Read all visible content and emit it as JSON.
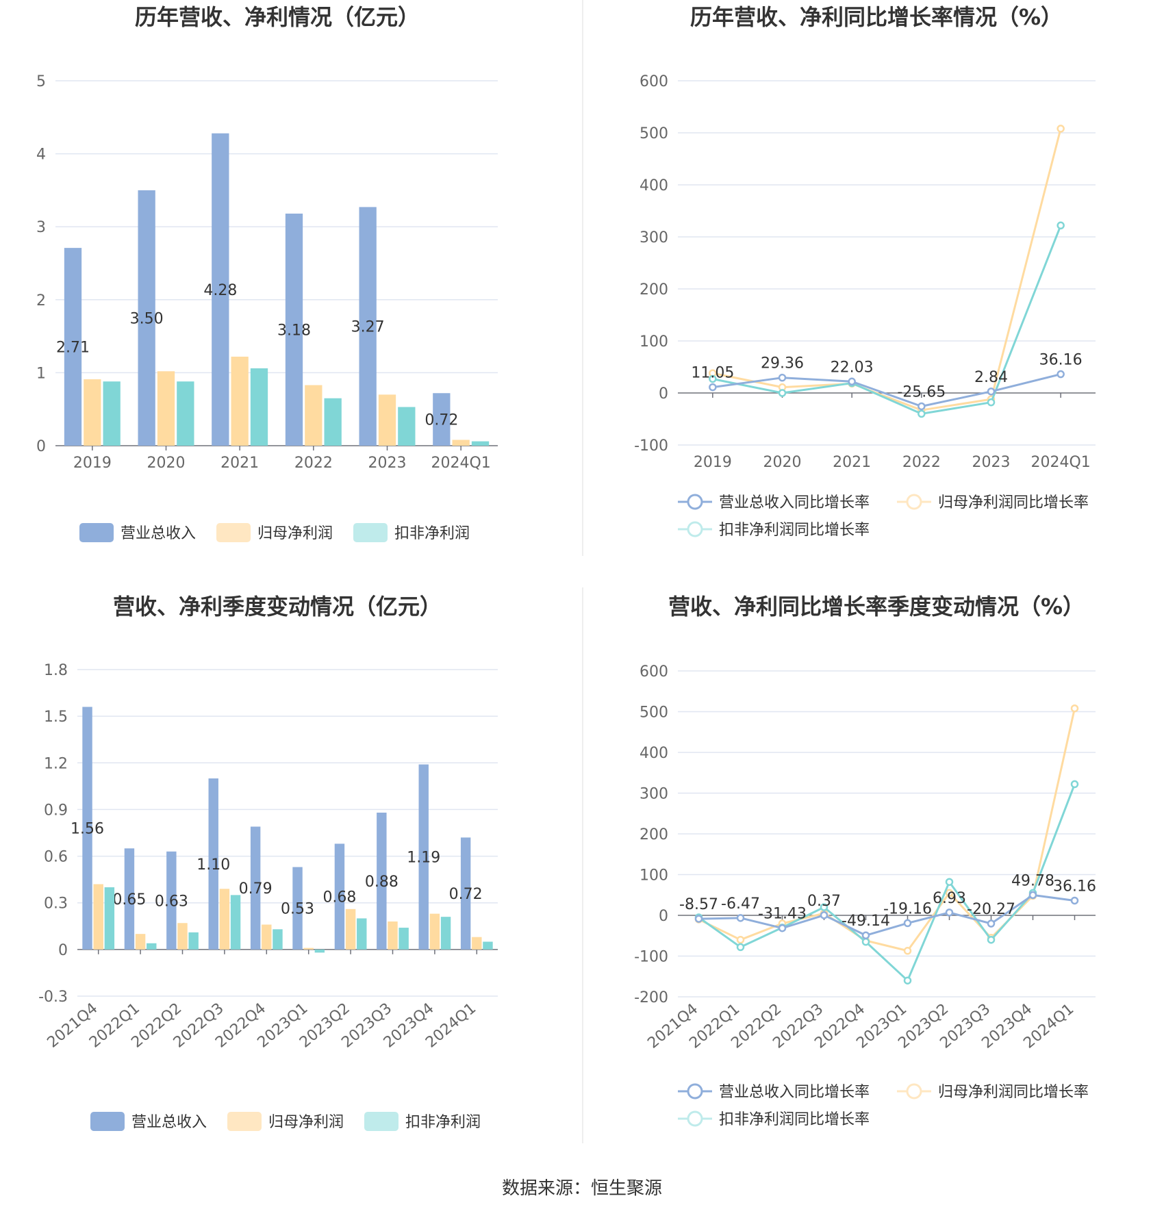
{
  "colors": {
    "revenue": "#8FAEDB",
    "net_profit": "#FFDBA0",
    "deducted_profit": "#80D6D6",
    "grid": "#E0E6F1",
    "axis": "#6E7079",
    "divider": "#EEEEEE"
  },
  "source": "数据来源：恒生聚源",
  "chart_data": [
    {
      "type": "bar",
      "title": "历年营收、净利情况（亿元）",
      "categories": [
        "2019",
        "2020",
        "2021",
        "2022",
        "2023",
        "2024Q1"
      ],
      "ylim": [
        0,
        5
      ],
      "yticks": [
        0,
        1,
        2,
        3,
        4,
        5
      ],
      "grid": true,
      "legend_position": "bottom",
      "series": [
        {
          "name": "营业总收入",
          "values": [
            2.71,
            3.5,
            4.28,
            3.18,
            3.27,
            0.72
          ],
          "labels": [
            "2.71",
            "3.50",
            "4.28",
            "3.18",
            "3.27",
            "0.72"
          ]
        },
        {
          "name": "归母净利润",
          "values": [
            0.91,
            1.02,
            1.22,
            0.83,
            0.7,
            0.08
          ]
        },
        {
          "name": "扣非净利润",
          "values": [
            0.88,
            0.88,
            1.06,
            0.65,
            0.53,
            0.06
          ]
        }
      ]
    },
    {
      "type": "line",
      "title": "历年营收、净利同比增长率情况（%）",
      "categories": [
        "2019",
        "2020",
        "2021",
        "2022",
        "2023",
        "2024Q1"
      ],
      "ylim": [
        -100,
        600
      ],
      "yticks": [
        -100,
        0,
        100,
        200,
        300,
        400,
        500,
        600
      ],
      "grid": true,
      "legend_position": "bottom",
      "series": [
        {
          "name": "营业总收入同比增长率",
          "values": [
            11.05,
            29.36,
            22.03,
            -25.65,
            2.84,
            36.16
          ],
          "labels": [
            "11.05",
            "29.36",
            "22.03",
            "-25.65",
            "2.84",
            "36.16"
          ]
        },
        {
          "name": "归母净利润同比增长率",
          "values": [
            38,
            11,
            18,
            -33,
            -12,
            508
          ]
        },
        {
          "name": "扣非净利润同比增长率",
          "values": [
            27,
            0,
            19,
            -40,
            -18,
            322
          ]
        }
      ]
    },
    {
      "type": "bar",
      "title": "营收、净利季度变动情况（亿元）",
      "categories": [
        "2021Q4",
        "2022Q1",
        "2022Q2",
        "2022Q3",
        "2022Q4",
        "2023Q1",
        "2023Q2",
        "2023Q3",
        "2023Q4",
        "2024Q1"
      ],
      "ylim": [
        -0.3,
        1.8
      ],
      "yticks": [
        -0.3,
        0,
        0.3,
        0.6,
        0.9,
        1.2,
        1.5,
        1.8
      ],
      "ytick_labels": [
        "-0.3",
        "0",
        "0.3",
        "0.6",
        "0.9",
        "1.2",
        "1.5",
        "1.8"
      ],
      "grid": true,
      "legend_position": "bottom",
      "series": [
        {
          "name": "营业总收入",
          "values": [
            1.56,
            0.65,
            0.63,
            1.1,
            0.79,
            0.53,
            0.68,
            0.88,
            1.19,
            0.72
          ],
          "labels": [
            "1.56",
            "0.65",
            "0.63",
            "1.10",
            "0.79",
            "0.53",
            "0.68",
            "0.88",
            "1.19",
            "0.72"
          ]
        },
        {
          "name": "归母净利润",
          "values": [
            0.42,
            0.1,
            0.17,
            0.39,
            0.16,
            0.01,
            0.26,
            0.18,
            0.23,
            0.08
          ]
        },
        {
          "name": "扣非净利润",
          "values": [
            0.4,
            0.04,
            0.11,
            0.35,
            0.13,
            -0.02,
            0.2,
            0.14,
            0.21,
            0.05
          ]
        }
      ]
    },
    {
      "type": "line",
      "title": "营收、净利同比增长率季度变动情况（%）",
      "categories": [
        "2021Q4",
        "2022Q1",
        "2022Q2",
        "2022Q3",
        "2022Q4",
        "2023Q1",
        "2023Q2",
        "2023Q3",
        "2023Q4",
        "2024Q1"
      ],
      "ylim": [
        -200,
        600
      ],
      "yticks": [
        -200,
        -100,
        0,
        100,
        200,
        300,
        400,
        500,
        600
      ],
      "grid": true,
      "legend_position": "bottom",
      "series": [
        {
          "name": "营业总收入同比增长率",
          "values": [
            -8.57,
            -6.47,
            -31.43,
            0.37,
            -49.14,
            -19.16,
            6.93,
            -20.27,
            49.78,
            36.16
          ],
          "labels": [
            "-8.57",
            "-6.47",
            "-31.43",
            "0.37",
            "-49.14",
            "-19.16",
            "6.93",
            "-20.27",
            "49.78",
            "36.16"
          ]
        },
        {
          "name": "归母净利润同比增长率",
          "values": [
            -10,
            -60,
            -20,
            5,
            -62,
            -87,
            55,
            -55,
            48,
            508
          ]
        },
        {
          "name": "扣非净利润同比增长率",
          "values": [
            -5,
            -78,
            -30,
            20,
            -65,
            -160,
            82,
            -60,
            55,
            322
          ]
        }
      ]
    }
  ]
}
